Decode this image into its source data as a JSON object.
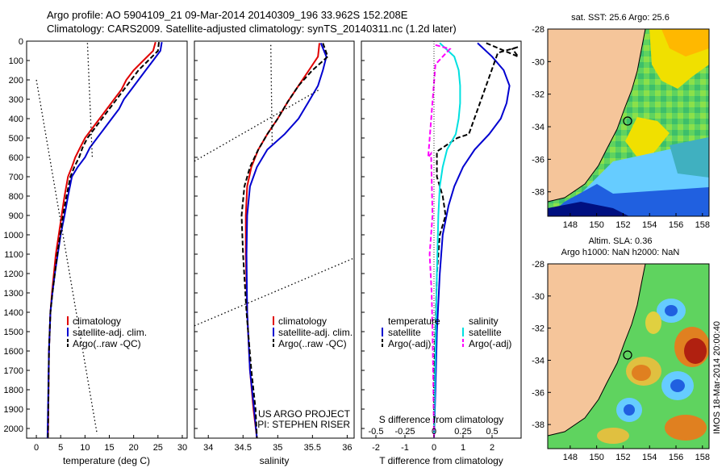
{
  "header": {
    "line1": "Argo profile: AO 5904109_21 09-Mar-2014 20140309_196 33.962S 152.208E",
    "line2": "Climatology: CARS2009. Satellite-adjusted climatology: synTS_20140311.nc (1.2d later)"
  },
  "watermark": "IMOS 18-Mar-2014 20:00:40",
  "colors": {
    "climatology": "#e00000",
    "satellite": "#0000d0",
    "argo": "#000000",
    "salinity_satellite": "#00e0e0",
    "salinity_argo": "#ff00ff",
    "land": "#f5c59a"
  },
  "chart_data": [
    {
      "id": "temperature",
      "type": "line",
      "xlabel": "temperature (deg C)",
      "ylabel": "",
      "xlim": [
        -2,
        31
      ],
      "ylim": [
        2050,
        0
      ],
      "xticks": [
        "0",
        "5",
        "10",
        "15",
        "20",
        "25",
        "30"
      ],
      "xtick_values": [
        0,
        5,
        10,
        15,
        20,
        25,
        30
      ],
      "yticks": [
        "0",
        "100",
        "200",
        "300",
        "400",
        "500",
        "600",
        "700",
        "800",
        "900",
        "1000",
        "1100",
        "1200",
        "1300",
        "1400",
        "1500",
        "1600",
        "1700",
        "1800",
        "1900",
        "2000"
      ],
      "ytick_values": [
        0,
        100,
        200,
        300,
        400,
        500,
        600,
        700,
        800,
        900,
        1000,
        1100,
        1200,
        1300,
        1400,
        1500,
        1600,
        1700,
        1800,
        1900,
        2000
      ],
      "legend": [
        "climatology",
        "satellite-adj. clim.",
        "Argo(..raw -QC)"
      ],
      "series": [
        {
          "name": "climatology",
          "style": "solid",
          "color": "#e00000",
          "x": [
            24.5,
            24,
            22,
            20,
            18.5,
            17.5,
            16,
            14.5,
            13,
            11.5,
            10,
            9,
            8,
            7.3,
            6.5,
            5.8,
            5.2,
            4.6,
            4,
            3.6,
            3.2,
            2.9,
            2.6,
            2.4
          ],
          "y": [
            5,
            50,
            100,
            150,
            200,
            250,
            300,
            350,
            400,
            450,
            500,
            550,
            600,
            650,
            700,
            800,
            900,
            1000,
            1100,
            1200,
            1300,
            1400,
            1600,
            2050
          ]
        },
        {
          "name": "satellite-adj. clim.",
          "style": "solid",
          "color": "#0000d0",
          "x": [
            25.8,
            25.5,
            24,
            22.5,
            21,
            19.5,
            18,
            17,
            15.5,
            14,
            12.5,
            11,
            10,
            8.5,
            7.3,
            6.5,
            5.8,
            5,
            4.4,
            3.8,
            3.3,
            2.9,
            2.6,
            2.3
          ],
          "y": [
            5,
            50,
            100,
            150,
            200,
            250,
            300,
            350,
            400,
            450,
            500,
            550,
            600,
            650,
            700,
            800,
            900,
            1000,
            1100,
            1200,
            1300,
            1400,
            1600,
            2050
          ]
        },
        {
          "name": "Argo(..raw -QC)",
          "style": "dashed",
          "color": "#000000",
          "x": [
            25.2,
            25,
            23,
            21,
            19.5,
            18,
            16.5,
            15,
            13.5,
            12,
            10.5,
            9.5,
            8.8,
            7.8,
            7,
            6.2,
            5.5,
            4.9,
            4.3,
            3.8,
            3.3,
            2.9,
            2.6,
            2.4
          ],
          "y": [
            5,
            50,
            100,
            150,
            200,
            250,
            300,
            350,
            400,
            450,
            500,
            550,
            600,
            650,
            700,
            800,
            900,
            1000,
            1100,
            1200,
            1300,
            1400,
            1600,
            2050
          ]
        },
        {
          "name": "",
          "style": "dotted",
          "color": "#000000",
          "x": [
            10.5,
            11.5
          ],
          "y": [
            10,
            600
          ]
        },
        {
          "name": "",
          "style": "dotted",
          "color": "#000000",
          "x": [
            0,
            12.5
          ],
          "y": [
            200,
            2030
          ]
        }
      ]
    },
    {
      "id": "salinity",
      "type": "line",
      "xlabel": "salinity",
      "ylabel": "",
      "xlim": [
        33.8,
        36.1
      ],
      "ylim": [
        2050,
        0
      ],
      "xticks": [
        "34",
        "34.5",
        "35",
        "35.5",
        "36"
      ],
      "xtick_values": [
        34,
        34.5,
        35,
        35.5,
        36
      ],
      "legend": [
        "climatology",
        "satellite-adj. clim.",
        "Argo(..raw -QC)"
      ],
      "annotation": [
        "US ARGO PROJECT",
        "PI: STEPHEN RISER"
      ],
      "series": [
        {
          "name": "climatology",
          "style": "solid",
          "color": "#e00000",
          "x": [
            35.6,
            35.58,
            35.45,
            35.3,
            35.15,
            35,
            34.85,
            34.72,
            34.62,
            34.56,
            34.54,
            34.54,
            34.56,
            34.6,
            34.65,
            34.7
          ],
          "y": [
            10,
            80,
            150,
            230,
            310,
            400,
            480,
            560,
            650,
            750,
            900,
            1100,
            1400,
            1700,
            1900,
            2050
          ]
        },
        {
          "name": "satellite-adj. clim.",
          "style": "solid",
          "color": "#0000d0",
          "x": [
            35.62,
            35.7,
            35.65,
            35.58,
            35.45,
            35.3,
            35.1,
            34.85,
            34.7,
            34.6,
            34.56,
            34.55,
            34.56,
            34.6,
            34.66,
            34.7
          ],
          "y": [
            10,
            80,
            150,
            230,
            310,
            400,
            480,
            560,
            650,
            750,
            900,
            1100,
            1400,
            1700,
            1900,
            2050
          ]
        },
        {
          "name": "Argo(..raw -QC)",
          "style": "dashed",
          "color": "#000000",
          "x": [
            35.65,
            35.72,
            35.5,
            35.3,
            35.15,
            35,
            34.85,
            34.72,
            34.6,
            34.52,
            34.48,
            34.5,
            34.55,
            34.62,
            34.68,
            34.7
          ],
          "y": [
            10,
            80,
            150,
            230,
            310,
            400,
            480,
            560,
            650,
            750,
            900,
            1100,
            1400,
            1700,
            1900,
            2050
          ]
        },
        {
          "name": "",
          "style": "dotted",
          "color": "#000000",
          "x": [
            34.9,
            34.92
          ],
          "y": [
            20,
            530
          ]
        },
        {
          "name": "",
          "style": "dotted",
          "color": "#000000",
          "x": [
            33.8,
            35.6
          ],
          "y": [
            620,
            250
          ]
        },
        {
          "name": "",
          "style": "dotted",
          "color": "#000000",
          "x": [
            33.8,
            36.1
          ],
          "y": [
            1470,
            1120
          ]
        }
      ]
    },
    {
      "id": "difference",
      "type": "line",
      "xlabel": "T difference from climatology",
      "xlabel_top": "S difference from climatology",
      "xlim": [
        -2.5,
        3
      ],
      "ylim": [
        2050,
        0
      ],
      "xticks": [
        "-2",
        "-1",
        "0",
        "1",
        "2"
      ],
      "xtick_values": [
        -2,
        -1,
        0,
        1,
        2
      ],
      "xticks_s": [
        "-0.5",
        "-0.25",
        "0",
        "0.25",
        "0.5"
      ],
      "legend_headers": [
        "temperature",
        "salinity"
      ],
      "legend": [
        "satellite",
        "Argo(-adj)",
        "satellite",
        "Argo(-adj)"
      ],
      "series": [
        {
          "name": "satellite",
          "variable": "temperature",
          "style": "solid",
          "color": "#0000d0",
          "x": [
            1.5,
            2,
            2.4,
            2.6,
            2.5,
            2.3,
            1.9,
            1.4,
            1,
            0.7,
            0.5,
            0.3,
            0.2,
            0.1,
            0.05,
            0
          ],
          "y": [
            10,
            80,
            150,
            230,
            320,
            400,
            480,
            560,
            650,
            750,
            850,
            1000,
            1200,
            1500,
            1800,
            2050
          ]
        },
        {
          "name": "Argo(-adj)",
          "variable": "temperature",
          "style": "dashed",
          "color": "#000000",
          "x": [
            1.8,
            2.9,
            2.7,
            2.9,
            2.2,
            1.2,
            0.8,
            0.1,
            0.1,
            0.3,
            0.4,
            0.2,
            0.1,
            0.05,
            0,
            0
          ],
          "y": [
            10,
            80,
            40,
            30,
            60,
            480,
            500,
            570,
            700,
            800,
            900,
            1000,
            1200,
            1500,
            1800,
            2050
          ]
        },
        {
          "name": "satellite",
          "variable": "salinity",
          "style": "solid",
          "color": "#00e0e0",
          "x": [
            0.2,
            0.7,
            0.85,
            0.9,
            0.9,
            0.85,
            0.75,
            0.45,
            0.3,
            0.2,
            0.15,
            0.1,
            0.05,
            0
          ],
          "y": [
            10,
            80,
            150,
            230,
            320,
            400,
            480,
            560,
            650,
            750,
            900,
            1200,
            1600,
            2050
          ]
        },
        {
          "name": "Argo(-adj)",
          "variable": "salinity",
          "style": "dashed",
          "color": "#ff00ff",
          "x": [
            0.05,
            0.55,
            0.3,
            0.05,
            -0.2,
            -0.1,
            -0.05,
            -0.15,
            -0.08,
            -0.05,
            -0.02,
            0
          ],
          "y": [
            20,
            40,
            80,
            120,
            600,
            580,
            900,
            1100,
            1300,
            1500,
            1800,
            2050
          ]
        }
      ]
    }
  ],
  "maps": [
    {
      "id": "sst-map",
      "title_lines": [
        "sat. SST: 25.6 Argo: 25.6"
      ],
      "lon_ticks": [
        "148",
        "150",
        "152",
        "154",
        "156",
        "158"
      ],
      "lat_ticks": [
        "-28",
        "-30",
        "-32",
        "-34",
        "-36",
        "-38"
      ],
      "lon_range": [
        146.3,
        158.5
      ],
      "lat_range": [
        -39.5,
        -28
      ],
      "marker": [
        152.208,
        -33.962
      ]
    },
    {
      "id": "sla-map",
      "title_lines": [
        "Altim. SLA: 0.36",
        "Argo h1000: NaN h2000: NaN"
      ],
      "lon_ticks": [
        "148",
        "150",
        "152",
        "154",
        "156",
        "158"
      ],
      "lat_ticks": [
        "-28",
        "-30",
        "-32",
        "-34",
        "-36",
        "-38"
      ],
      "lon_range": [
        146.3,
        158.5
      ],
      "lat_range": [
        -39.5,
        -28
      ],
      "marker": [
        152.208,
        -33.962
      ]
    }
  ]
}
